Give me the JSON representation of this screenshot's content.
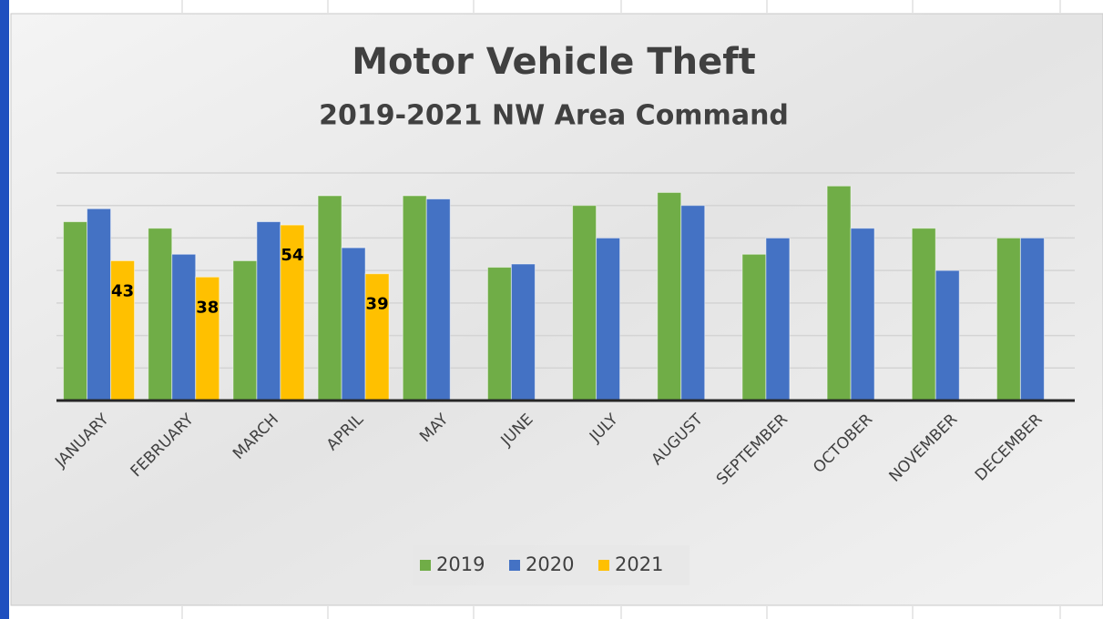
{
  "chart_data": {
    "type": "bar",
    "title": "Motor Vehicle Theft",
    "subtitle": "2019-2021 NW Area Command",
    "categories": [
      "JANUARY",
      "FEBRUARY",
      "MARCH",
      "APRIL",
      "MAY",
      "JUNE",
      "JULY",
      "AUGUST",
      "SEPTEMBER",
      "OCTOBER",
      "NOVEMBER",
      "DECEMBER"
    ],
    "series": [
      {
        "name": "2019",
        "color": "#70ad47",
        "values": [
          55,
          53,
          43,
          63,
          63,
          41,
          60,
          64,
          45,
          66,
          53,
          50
        ]
      },
      {
        "name": "2020",
        "color": "#4472c4",
        "values": [
          59,
          45,
          55,
          47,
          62,
          42,
          50,
          60,
          50,
          53,
          40,
          50
        ]
      },
      {
        "name": "2021",
        "color": "#ffc000",
        "values": [
          43,
          38,
          54,
          39,
          null,
          null,
          null,
          null,
          null,
          null,
          null,
          null
        ],
        "data_labels": true
      }
    ],
    "ylim": [
      0,
      70
    ],
    "yticks": [
      0,
      10,
      20,
      30,
      40,
      50,
      60,
      70
    ],
    "grid": true,
    "legend": "bottom"
  }
}
